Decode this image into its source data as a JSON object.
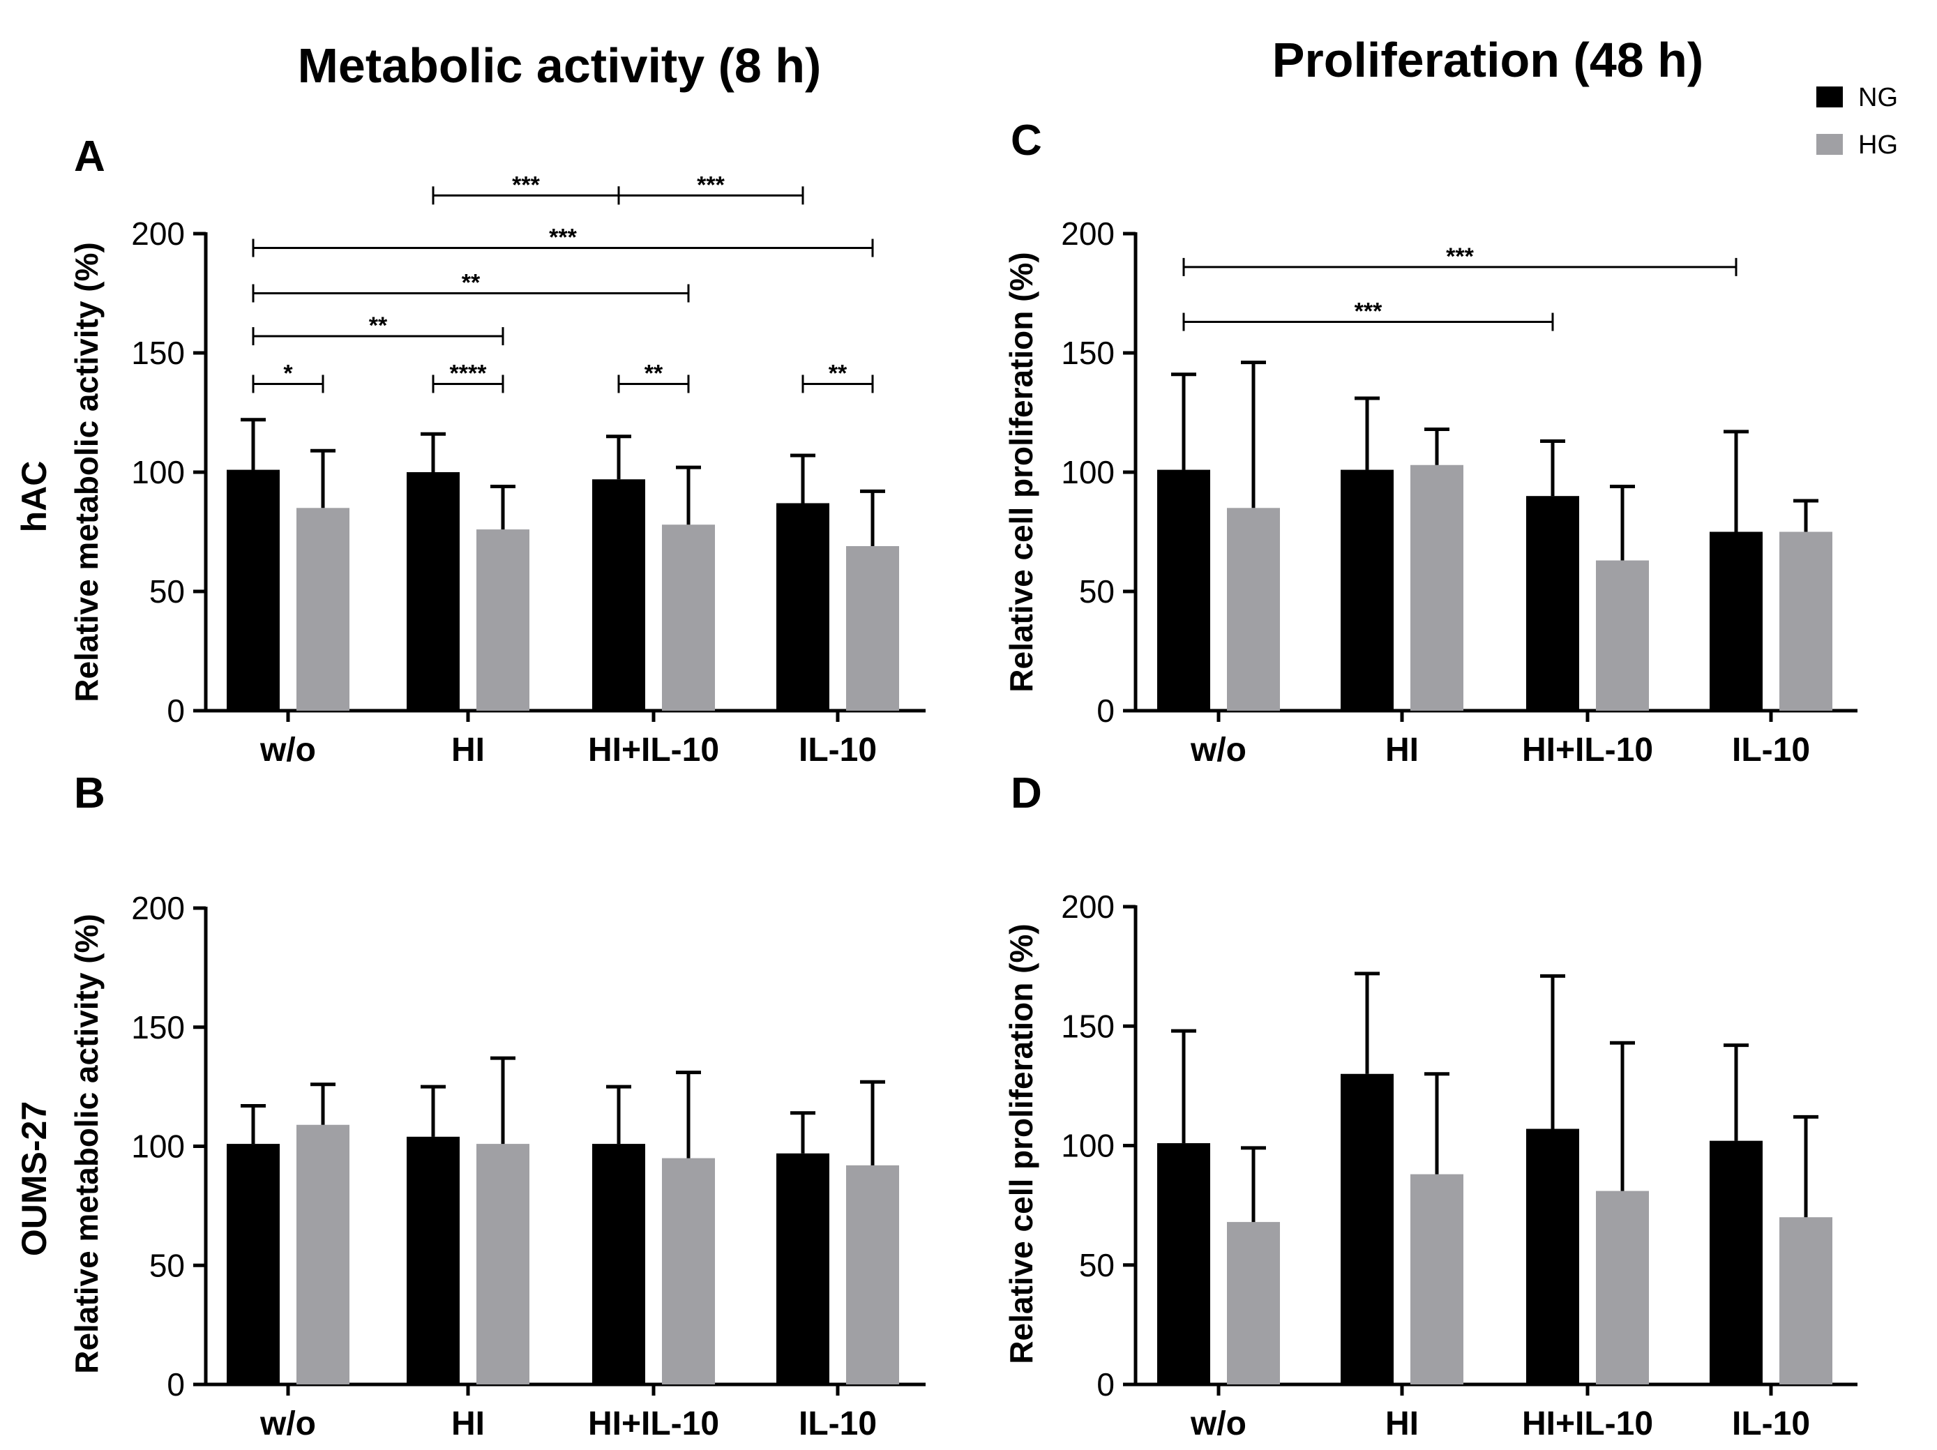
{
  "column_titles": {
    "left": "Metabolic activity (8 h)",
    "right": "Proliferation (48 h)"
  },
  "row_labels": {
    "top": "hAC",
    "bottom": "OUMS-27"
  },
  "legend": [
    {
      "label": "NG",
      "color": "#000000"
    },
    {
      "label": "HG",
      "color": "#a0a0a4"
    }
  ],
  "colors": {
    "NG": "#000000",
    "HG": "#a0a0a4",
    "axis": "#000000"
  },
  "chart_data": [
    {
      "panel": "A",
      "type": "bar",
      "title": "",
      "ylabel": "Relative metabolic activity (%)",
      "xlabel": "",
      "categories": [
        "w/o",
        "HI",
        "HI+IL-10",
        "IL-10"
      ],
      "ylim": [
        0,
        200
      ],
      "yticks": [
        0,
        50,
        100,
        150,
        200
      ],
      "series": [
        {
          "name": "NG",
          "values": [
            101,
            100,
            97,
            87
          ],
          "errors": [
            21,
            16,
            18,
            20
          ]
        },
        {
          "name": "HG",
          "values": [
            85,
            76,
            78,
            69
          ],
          "errors": [
            24,
            18,
            24,
            23
          ]
        }
      ],
      "significance": [
        {
          "from": [
            0,
            0
          ],
          "to": [
            0,
            1
          ],
          "y": 137,
          "label": "*"
        },
        {
          "from": [
            1,
            0
          ],
          "to": [
            1,
            1
          ],
          "y": 137,
          "label": "****"
        },
        {
          "from": [
            2,
            0
          ],
          "to": [
            2,
            1
          ],
          "y": 137,
          "label": "**"
        },
        {
          "from": [
            3,
            0
          ],
          "to": [
            3,
            1
          ],
          "y": 137,
          "label": "**"
        },
        {
          "from": [
            0,
            0
          ],
          "to": [
            1,
            1
          ],
          "y": 157,
          "label": "**"
        },
        {
          "from": [
            0,
            0
          ],
          "to": [
            2,
            1
          ],
          "y": 175,
          "label": "**"
        },
        {
          "from": [
            0,
            0
          ],
          "to": [
            3,
            1
          ],
          "y": 194,
          "label": "***"
        },
        {
          "from": [
            1,
            0
          ],
          "to": [
            2,
            0
          ],
          "y": 216,
          "label": "***"
        },
        {
          "from": [
            2,
            0
          ],
          "to": [
            3,
            0
          ],
          "y": 216,
          "label": "***"
        }
      ]
    },
    {
      "panel": "C",
      "type": "bar",
      "title": "",
      "ylabel": "Relative cell proliferation (%)",
      "xlabel": "",
      "categories": [
        "w/o",
        "HI",
        "HI+IL-10",
        "IL-10"
      ],
      "ylim": [
        0,
        200
      ],
      "yticks": [
        0,
        50,
        100,
        150,
        200
      ],
      "series": [
        {
          "name": "NG",
          "values": [
            101,
            101,
            90,
            75
          ],
          "errors": [
            40,
            30,
            23,
            42
          ]
        },
        {
          "name": "HG",
          "values": [
            85,
            103,
            63,
            75
          ],
          "errors": [
            61,
            15,
            31,
            13
          ]
        }
      ],
      "significance": [
        {
          "from": [
            0,
            0
          ],
          "to": [
            2,
            0
          ],
          "y": 163,
          "label": "***"
        },
        {
          "from": [
            0,
            0
          ],
          "to": [
            3,
            0
          ],
          "y": 186,
          "label": "***"
        }
      ]
    },
    {
      "panel": "B",
      "type": "bar",
      "title": "",
      "ylabel": "Relative metabolic activity (%)",
      "xlabel": "",
      "categories": [
        "w/o",
        "HI",
        "HI+IL-10",
        "IL-10"
      ],
      "ylim": [
        0,
        200
      ],
      "yticks": [
        0,
        50,
        100,
        150,
        200
      ],
      "series": [
        {
          "name": "NG",
          "values": [
            101,
            104,
            101,
            97
          ],
          "errors": [
            16,
            21,
            24,
            17
          ]
        },
        {
          "name": "HG",
          "values": [
            109,
            101,
            95,
            92
          ],
          "errors": [
            17,
            36,
            36,
            35
          ]
        }
      ],
      "significance": []
    },
    {
      "panel": "D",
      "type": "bar",
      "title": "",
      "ylabel": "Relative cell proliferation (%)",
      "xlabel": "",
      "categories": [
        "w/o",
        "HI",
        "HI+IL-10",
        "IL-10"
      ],
      "ylim": [
        0,
        200
      ],
      "yticks": [
        0,
        50,
        100,
        150,
        200
      ],
      "series": [
        {
          "name": "NG",
          "values": [
            101,
            130,
            107,
            102
          ],
          "errors": [
            47,
            42,
            64,
            40
          ]
        },
        {
          "name": "HG",
          "values": [
            68,
            88,
            81,
            70
          ],
          "errors": [
            31,
            42,
            62,
            42
          ]
        }
      ],
      "significance": []
    }
  ]
}
